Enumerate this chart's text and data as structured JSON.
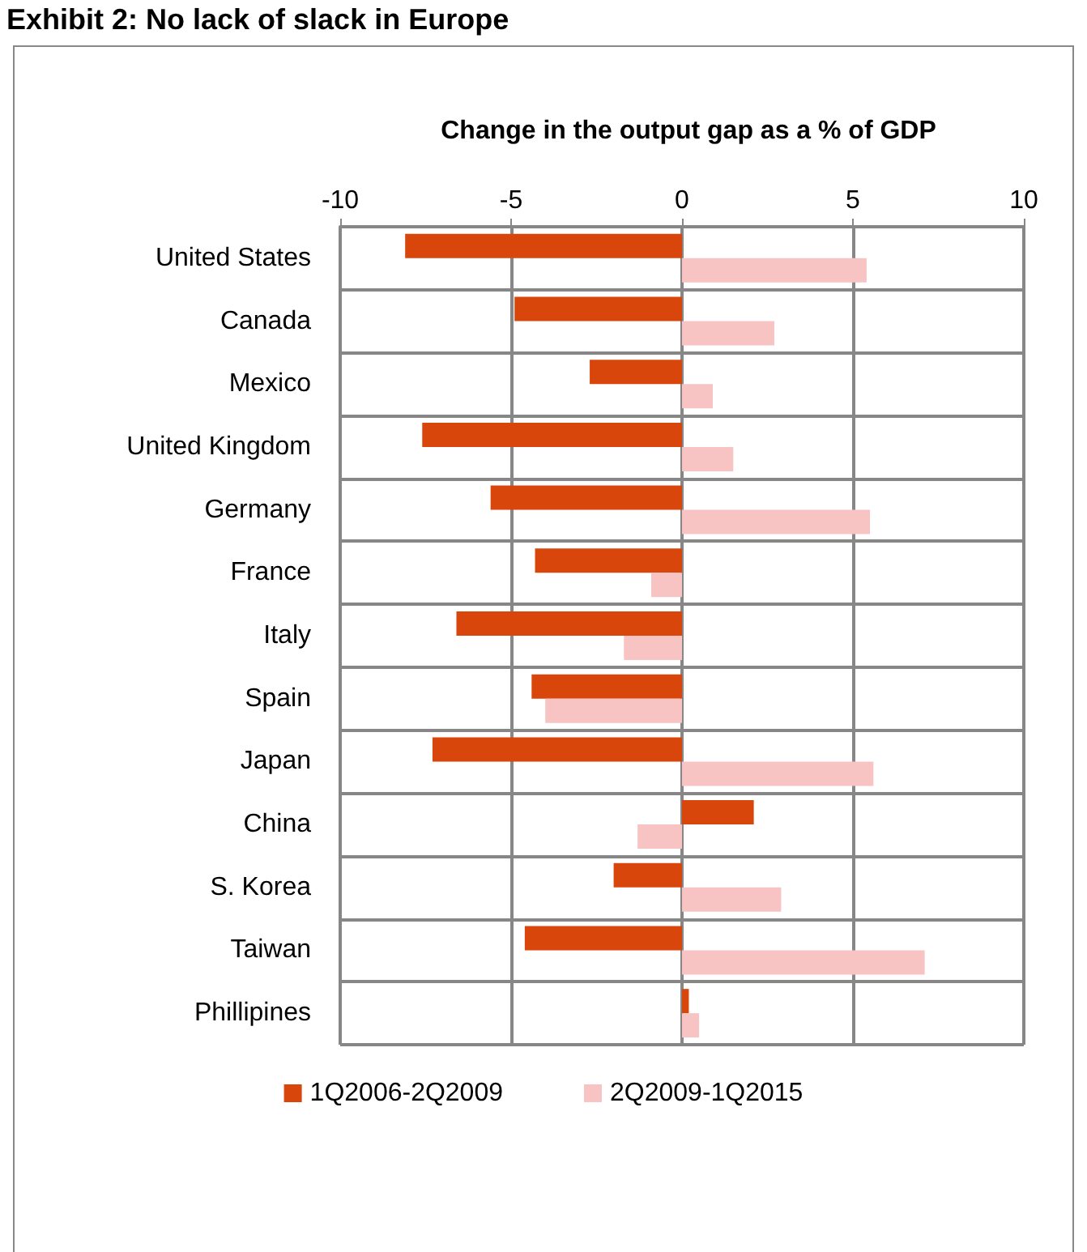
{
  "chart_data": {
    "type": "bar",
    "orientation": "horizontal",
    "title": "Exhibit 2: No lack of slack in Europe",
    "subtitle": "Change in the output gap as a % of GDP",
    "categories": [
      "United States",
      "Canada",
      "Mexico",
      "United Kingdom",
      "Germany",
      "France",
      "Italy",
      "Spain",
      "Japan",
      "China",
      "S. Korea",
      "Taiwan",
      "Phillipines"
    ],
    "series": [
      {
        "name": "1Q2006-2Q2009",
        "color": "#d9460b",
        "values": [
          -8.1,
          -4.9,
          -2.7,
          -7.6,
          -5.6,
          -4.3,
          -6.6,
          -4.4,
          -7.3,
          2.1,
          -2.0,
          -4.6,
          0.2
        ]
      },
      {
        "name": "2Q2009-1Q2015",
        "color": "#f7c3c3",
        "values": [
          5.4,
          2.7,
          0.9,
          1.5,
          5.5,
          -0.9,
          -1.7,
          -4.0,
          5.6,
          -1.3,
          2.9,
          7.1,
          0.5
        ]
      }
    ],
    "xlim": [
      -10,
      10
    ],
    "xticks": [
      -10,
      -5,
      0,
      5,
      10
    ],
    "grid": true,
    "legend": "bottom"
  }
}
